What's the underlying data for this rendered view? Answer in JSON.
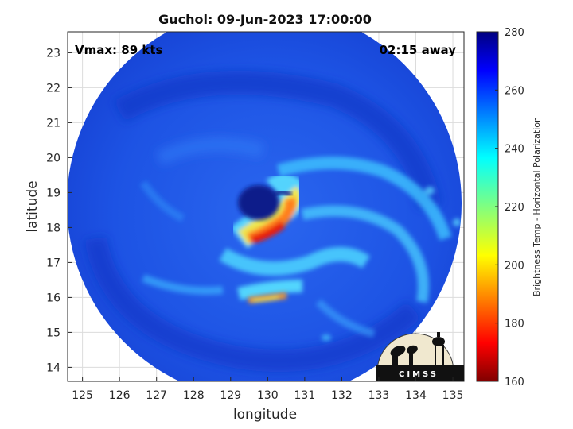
{
  "title": "Guchol: 09-Jun-2023 17:00:00",
  "vmax_label": "Vmax: 89 kts",
  "time_label": "02:15 away",
  "xlabel": "longitude",
  "ylabel": "latitude",
  "colorbar_label": "Brightness Temp - Horizontal Polarization",
  "logo_text": "CIMSS",
  "x_ticks": [
    125,
    126,
    127,
    128,
    129,
    130,
    131,
    132,
    133,
    134,
    135
  ],
  "y_ticks": [
    14,
    15,
    16,
    17,
    18,
    19,
    20,
    21,
    22,
    23
  ],
  "colorbar_ticks": [
    160,
    180,
    200,
    220,
    240,
    260,
    280
  ],
  "xlim": [
    124.6,
    135.3
  ],
  "ylim": [
    13.6,
    23.6
  ],
  "clim": [
    160,
    280
  ],
  "colormap": "jet",
  "colors": {
    "background_swath": "#1a4fe0",
    "cold_core": "#e81a0f",
    "eye": "#0a1a8a"
  }
}
